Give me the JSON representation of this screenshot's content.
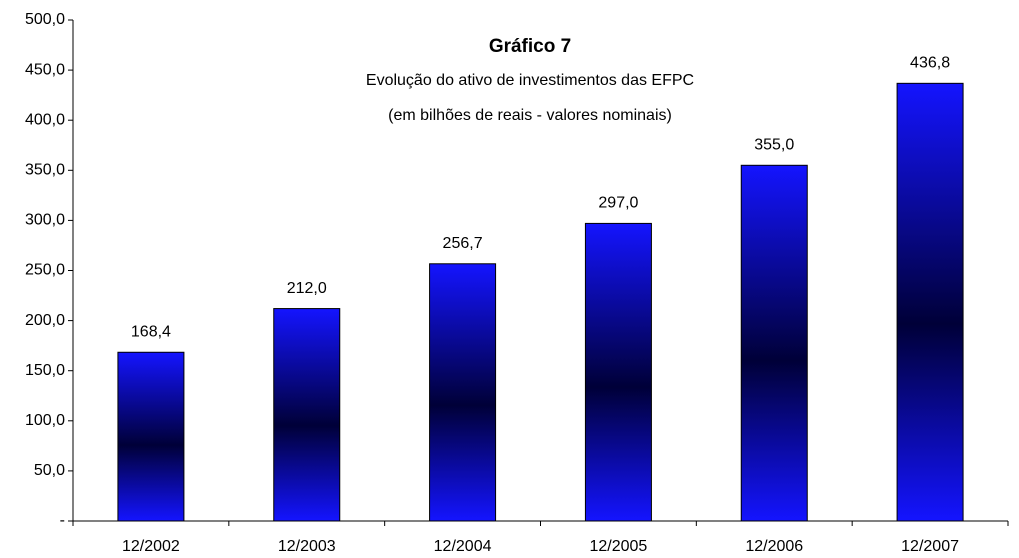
{
  "chart_data": {
    "type": "bar",
    "title": "Gráfico  7",
    "subtitle": [
      "Evolução do ativo de investimentos das EFPC",
      "(em bilhões de reais - valores nominais)"
    ],
    "categories": [
      "12/2002",
      "12/2003",
      "12/2004",
      "12/2005",
      "12/2006",
      "12/2007"
    ],
    "values": [
      168.4,
      212.0,
      256.7,
      297.0,
      355.0,
      436.8
    ],
    "value_labels": [
      "168,4",
      "212,0",
      "256,7",
      "297,0",
      "355,0",
      "436,8"
    ],
    "color": "#1414ff",
    "ylim": [
      0,
      500
    ],
    "yticks": [
      {
        "value": 0,
        "label": "-"
      },
      {
        "value": 50,
        "label": "50,0"
      },
      {
        "value": 100,
        "label": "100,0"
      },
      {
        "value": 150,
        "label": "150,0"
      },
      {
        "value": 200,
        "label": "200,0"
      },
      {
        "value": 250,
        "label": "250,0"
      },
      {
        "value": 300,
        "label": "300,0"
      },
      {
        "value": 350,
        "label": "350,0"
      },
      {
        "value": 400,
        "label": "400,0"
      },
      {
        "value": 450,
        "label": "450,0"
      },
      {
        "value": 500,
        "label": "500,0"
      }
    ],
    "grid": false
  }
}
